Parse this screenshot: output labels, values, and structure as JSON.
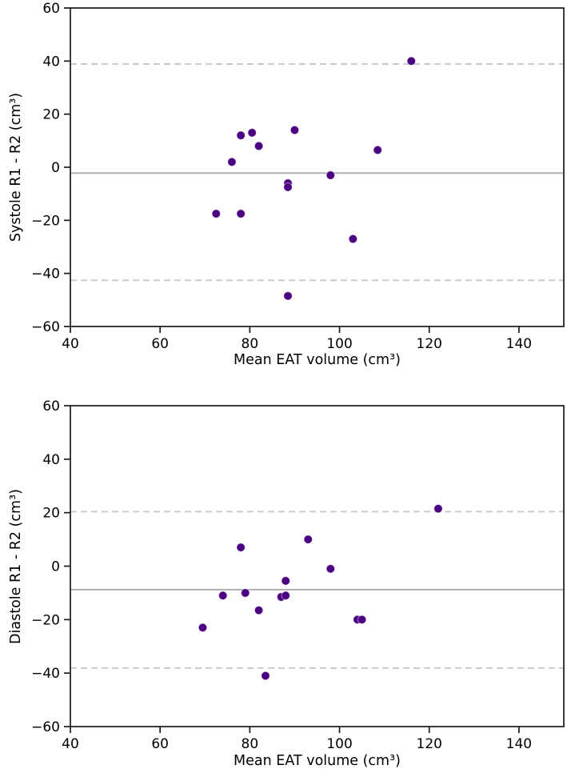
{
  "page": {
    "background": "#ffffff"
  },
  "chart_data": [
    {
      "type": "scatter",
      "title": "",
      "xlabel": "Mean EAT volume (cm³)",
      "ylabel": "Systole R1 - R2 (cm³)",
      "xlim": [
        40,
        150
      ],
      "ylim": [
        -60,
        60
      ],
      "xticks": [
        40,
        60,
        80,
        100,
        120,
        140
      ],
      "yticks": [
        60,
        40,
        20,
        0,
        -20,
        -40,
        -60
      ],
      "grid": false,
      "legend": "none",
      "points": [
        [
          76,
          2
        ],
        [
          78,
          12
        ],
        [
          80.5,
          13
        ],
        [
          82,
          8
        ],
        [
          90,
          14
        ],
        [
          72.5,
          -17.5
        ],
        [
          78,
          -17.5
        ],
        [
          88.5,
          -6
        ],
        [
          88.5,
          -7.5
        ],
        [
          98,
          -3
        ],
        [
          103,
          -27
        ],
        [
          108.5,
          6.5
        ],
        [
          116,
          40
        ],
        [
          88.5,
          -48.5
        ]
      ],
      "mean_line": -2.2,
      "upper_loa": 38.9,
      "lower_loa": -42.6,
      "point_color": "#4B0082",
      "mean_line_color": "#b0b0b0",
      "loa_line_color": "#cbcbcb",
      "axis_color": "#1a1a1a"
    },
    {
      "type": "scatter",
      "title": "",
      "xlabel": "Mean EAT volume (cm³)",
      "ylabel": "Diastole R1 - R2 (cm³)",
      "xlim": [
        40,
        150
      ],
      "ylim": [
        -60,
        60
      ],
      "xticks": [
        40,
        60,
        80,
        100,
        120,
        140
      ],
      "yticks": [
        60,
        40,
        20,
        0,
        -20,
        -40,
        -60
      ],
      "grid": false,
      "legend": "none",
      "points": [
        [
          69.5,
          -23
        ],
        [
          74,
          -11
        ],
        [
          78,
          7
        ],
        [
          79,
          -10
        ],
        [
          82,
          -16.5
        ],
        [
          83.5,
          -41
        ],
        [
          87,
          -11.5
        ],
        [
          88,
          -11
        ],
        [
          88,
          -5.5
        ],
        [
          93,
          10
        ],
        [
          98,
          -1
        ],
        [
          104,
          -20
        ],
        [
          105,
          -20
        ],
        [
          122,
          21.5
        ]
      ],
      "mean_line": -8.8,
      "upper_loa": 20.4,
      "lower_loa": -38.1,
      "point_color": "#4B0082",
      "mean_line_color": "#b0b0b0",
      "loa_line_color": "#cbcbcb",
      "axis_color": "#1a1a1a"
    }
  ]
}
